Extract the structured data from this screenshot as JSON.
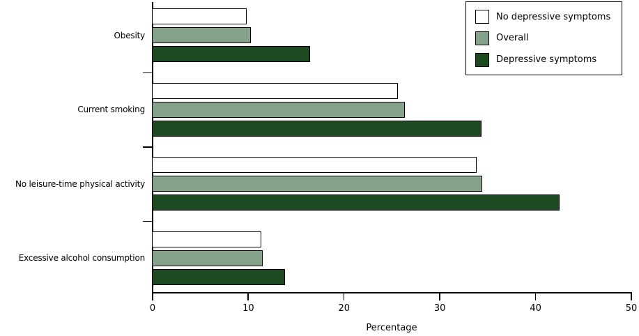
{
  "chart_data": {
    "type": "bar",
    "orientation": "horizontal",
    "title": "",
    "xlabel": "Percentage",
    "ylabel": "",
    "xlim": [
      0,
      50
    ],
    "xticks": [
      0,
      10,
      20,
      30,
      40,
      50
    ],
    "grid": false,
    "legend_position": "top-right",
    "categories": [
      "Obesity",
      "Current smoking",
      "No leisure-time physical activity",
      "Excessive alcohol consumption"
    ],
    "series": [
      {
        "name": "No depressive symptoms",
        "color": "#FFFFFF",
        "values": [
          9.9,
          25.7,
          33.9,
          11.4
        ]
      },
      {
        "name": "Overall",
        "color": "#85A28B",
        "values": [
          10.3,
          26.4,
          34.5,
          11.6
        ]
      },
      {
        "name": "Depressive symptoms",
        "color": "#1E4A22",
        "values": [
          16.5,
          34.4,
          42.6,
          13.9
        ]
      }
    ],
    "bar_border_color": "#000000",
    "axis_color": "#000000",
    "background_color": "#FFFFFF"
  }
}
